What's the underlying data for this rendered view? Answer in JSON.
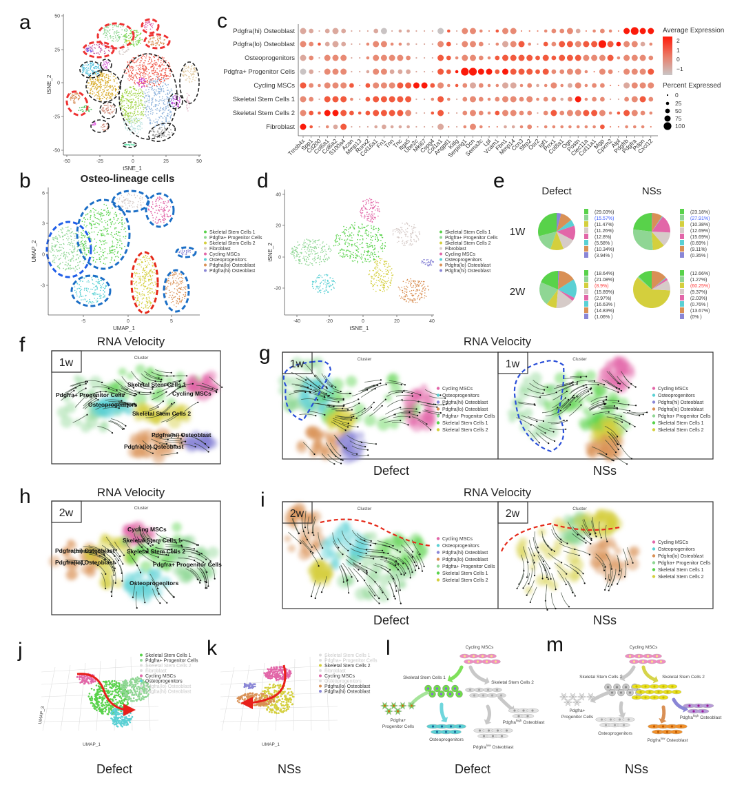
{
  "panel_letters": {
    "a": "a",
    "b": "b",
    "c": "c",
    "d": "d",
    "e": "e",
    "f": "f",
    "g": "g",
    "h": "h",
    "i": "i",
    "j": "j",
    "k": "k",
    "l": "l",
    "m": "m"
  },
  "cell_types": [
    {
      "name": "Skeletal Stem Cells 1",
      "color": "#58d24a"
    },
    {
      "name": "Pdgfra+ Progenitor Cells",
      "color": "#8fd694"
    },
    {
      "name": "Skeletal Stem Cells 2",
      "color": "#d4cf3d"
    },
    {
      "name": "Fibroblast",
      "color": "#d6cbc8"
    },
    {
      "name": "Cycling MSCs",
      "color": "#e266a8"
    },
    {
      "name": "Osteoprogenitors",
      "color": "#5ad0d4"
    },
    {
      "name": "Pdgfra(lo) Osteoblast",
      "color": "#d99055"
    },
    {
      "name": "Pdgfra(hi) Osteoblast",
      "color": "#8a86d6"
    }
  ],
  "panel_a": {
    "xlabel": "tSNE_1",
    "ylabel": "tSNE_2",
    "xticks": [
      "-50",
      "-25",
      "0",
      "25",
      "50"
    ],
    "yticks": [
      "50",
      "25",
      "0",
      "-25",
      "-50"
    ]
  },
  "panel_b": {
    "title": "Osteo-lineage cells",
    "xlabel": "UMAP_1",
    "ylabel": "UMAP_2",
    "xticks": [
      "-5",
      "0",
      "5"
    ],
    "yticks": [
      "6",
      "3",
      "0",
      "-3"
    ]
  },
  "panel_d": {
    "xlabel": "tSNE_1",
    "ylabel": "tSNE_2",
    "xticks": [
      "-40",
      "-20",
      "0",
      "20",
      "40"
    ],
    "yticks": [
      "40",
      "20",
      "0",
      "-20"
    ]
  },
  "velocity": {
    "title": "RNA Velocity",
    "cluster_label": "Cluster",
    "week1": "1w",
    "week2": "2w",
    "defect": "Defect",
    "nss": "NSs",
    "g_legend": [
      4,
      5,
      7,
      6,
      1,
      0,
      2
    ],
    "i_defect_legend": [
      4,
      5,
      7,
      6,
      1,
      0,
      2
    ],
    "i_nss_legend": [
      4,
      5,
      6,
      1,
      0,
      2
    ]
  },
  "trajectory": {
    "defect": "Defect",
    "nss": "NSs",
    "xlabel": "UMAP_1",
    "zlabel": "UMAP_3",
    "j_active": [
      1,
      1,
      0,
      0,
      1,
      1,
      0,
      0
    ],
    "k_active": [
      0,
      0,
      1,
      0,
      1,
      0,
      1,
      1
    ]
  },
  "lineage": {
    "cycling": "Cycling MSCs",
    "ssc1": "Skeletal Stem Cells 1",
    "ssc2": "Skeletal Stem Cells 2",
    "pdgfra_prog_1": "Pdgfra+",
    "pdgfra_prog_2": "Progenitor Cells",
    "osteoprog": "Osteoprogenitors",
    "ob_base": "Pdgfra",
    "ob_high": "high",
    "ob_low": "low",
    "ob_suffix": " Osteoblast",
    "defect": "Defect",
    "nss": "NSs"
  },
  "chart_data": [
    {
      "type": "dot",
      "panel": "c",
      "genes": [
        "Tmsb4x",
        "Spp1",
        "Cd200",
        "Col6a1",
        "Col6a2",
        "S100a4",
        "Acan",
        "Mmp13",
        "Runx2",
        "Col16a1",
        "Fn1",
        "Tnn",
        "Tnc",
        "Itga5",
        "Ube2c",
        "Mki67",
        "Cspg4",
        "Col1a1",
        "Angptl1",
        "Kitlg",
        "Serping1",
        "Dcn",
        "Sema3c",
        "Lpl",
        "Vcam1",
        "Fbn1",
        "Mmp14",
        "Ccn3",
        "Sfrp2",
        "Osr2",
        "Igf1",
        "Prrx1",
        "Col8a1",
        "Ogn",
        "Postn",
        "Clec11a",
        "Col11a1",
        "Mgp",
        "Cpxm2",
        "Alpl",
        "Pdgfrb",
        "Pdgfra",
        "Pdpn",
        "Cxcl12"
      ],
      "cell_types": [
        "Pdgfra(hi) Osteoblast",
        "Pdgfra(lo) Osteoblast",
        "Osteoprogenitors",
        "Pdgfra+ Progenitor Cells",
        "Cycling MSCs",
        "Skeletal Stem Cells 1",
        "Skeletal Stem Cells 2",
        "Fibroblast"
      ],
      "percent_expressed_codes": [
        "32023200023011000310331013300012232012103433",
        "32123200133111000320332013331022333334323321",
        "32033300133332000321332123333232333333313332",
        "32033300133222000321443323333232233103203333",
        "32133320233333332311232113312113123122003333",
        "32033310233333001310232123323122123122002332",
        "32133321233333001300232123322023233333113321",
        "31012300012111000300131001112011111112001110"
      ],
      "avg_expression_codes": [
        "11111111110111111031222232222222221222224444",
        "22311111222221111231222121232132332334342212",
        "12122211222222111332222233333333333222322222",
        "01122211122111111334444434333332222222212223",
        "32222231322233443223212221122122212222221222",
        "22133321333333112321222222222222124222112232",
        "23344333333332113321222232222123222332233222",
        "43121311111111111121222221122222222223222222"
      ],
      "percent_code_values": [
        0,
        25,
        50,
        75,
        100
      ],
      "expression_code_values": [
        -1.5,
        -0.5,
        0.5,
        1.25,
        2
      ],
      "legend_expression_title": "Average Expression",
      "legend_expression_ticks": [
        "2",
        "1",
        "0",
        "−1"
      ],
      "legend_percent_title": "Percent Expressed",
      "legend_percent_ticks": [
        "0",
        "25",
        "50",
        "75",
        "100"
      ],
      "color_low": "#c9c6c6",
      "color_high": "#ff1a0a"
    },
    {
      "type": "pie",
      "panel": "e",
      "columns": [
        "Defect",
        "NSs"
      ],
      "rows": [
        "1W",
        "2W"
      ],
      "categories": [
        "Skeletal Stem Cells 1",
        "Pdgfra+ Progenitor Cells",
        "Skeletal Stem Cells 2",
        "Fibroblast",
        "Cycling MSCs",
        "Osteoprogenitors",
        "Pdgfra(lo) Osteoblast",
        "Pdgfra(hi) Osteoblast"
      ],
      "pies": [
        {
          "condition": "Defect",
          "time": "1W",
          "values": [
            29.03,
            15.57,
            11.47,
            11.26,
            12.8,
            5.58,
            10.34,
            3.94
          ],
          "labels": [
            "(29.03%)",
            "(15.57%)",
            "(11.47%)",
            "(11.26%)",
            "(12.8%)",
            "(5.58% )",
            "(10.34%)",
            "(3.94% )"
          ],
          "highlight_index": 1,
          "highlight_color": "#3b5bff"
        },
        {
          "condition": "NSs",
          "time": "1W",
          "values": [
            23.18,
            27.91,
            10.38,
            12.69,
            15.69,
            0.69,
            9.11,
            0.35
          ],
          "labels": [
            "(23.18%)",
            "(27.91%)",
            "(10.38%)",
            "(12.69%)",
            "(15.69%)",
            "(0.69% )",
            "(9.11%)",
            "(0.35% )"
          ],
          "highlight_index": 1,
          "highlight_color": "#3b5bff"
        },
        {
          "condition": "Defect",
          "time": "2W",
          "values": [
            18.64,
            21.08,
            8.9,
            15.89,
            2.97,
            16.63,
            14.83,
            1.06
          ],
          "labels": [
            "(18.64%)",
            "(21.08%)",
            "(8.9%)",
            "(15.89%)",
            "(2.97%)",
            "(16.63% )",
            "(14.83%)",
            "(1.06% )"
          ],
          "highlight_index": 2,
          "highlight_color": "#ff3b3b"
        },
        {
          "condition": "NSs",
          "time": "2W",
          "values": [
            12.66,
            1.27,
            60.25,
            9.37,
            2.03,
            0.76,
            13.67,
            0
          ],
          "labels": [
            "(12.66%)",
            "(1.27%)",
            "(60.25%)",
            "(9.37%)",
            "(2.03%)",
            "(0.76% )",
            "(13.67%)",
            "(0% )"
          ],
          "highlight_index": 2,
          "highlight_color": "#ff3b3b"
        }
      ]
    }
  ]
}
